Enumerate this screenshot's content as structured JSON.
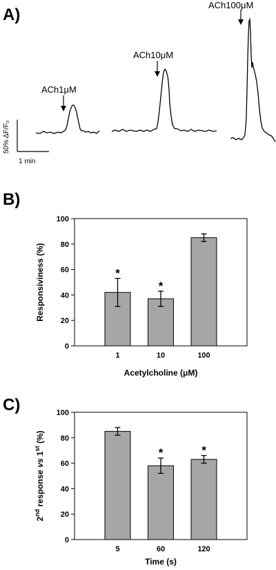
{
  "panel_a": {
    "letter": "A)",
    "scale_y_label": "50% ΔF/F₀",
    "scale_x_label": "1 min",
    "traces": [
      {
        "label": "ACh1μM"
      },
      {
        "label": "ACh10μM"
      },
      {
        "label": "ACh100μM"
      }
    ]
  },
  "panel_b": {
    "letter": "B)"
  },
  "panel_c": {
    "letter": "C)"
  },
  "chart_data": [
    {
      "type": "bar",
      "categories": [
        "1",
        "10",
        "100"
      ],
      "values": [
        42,
        37,
        85
      ],
      "errors": [
        11,
        6,
        3
      ],
      "significant": [
        true,
        true,
        false
      ],
      "marker": "*",
      "ylabel": "Responsiviness (%)",
      "xlabel": "Acetylcholine (μM)",
      "ylim": [
        0,
        100
      ],
      "yticks": [
        0,
        20,
        40,
        60,
        80,
        100
      ],
      "bar_color": "#a6a6a6",
      "grid": false
    },
    {
      "type": "bar",
      "categories": [
        "5",
        "60",
        "120"
      ],
      "values": [
        85,
        58,
        63
      ],
      "errors": [
        3,
        6,
        3
      ],
      "significant": [
        false,
        true,
        true
      ],
      "marker": "*",
      "ylabel_parts": [
        "2",
        "nd",
        " response ",
        "vs",
        " 1",
        "st",
        " (%)"
      ],
      "xlabel": "Time (s)",
      "ylim": [
        0,
        100
      ],
      "yticks": [
        0,
        20,
        40,
        60,
        80,
        100
      ],
      "bar_color": "#a6a6a6",
      "grid": false
    }
  ]
}
